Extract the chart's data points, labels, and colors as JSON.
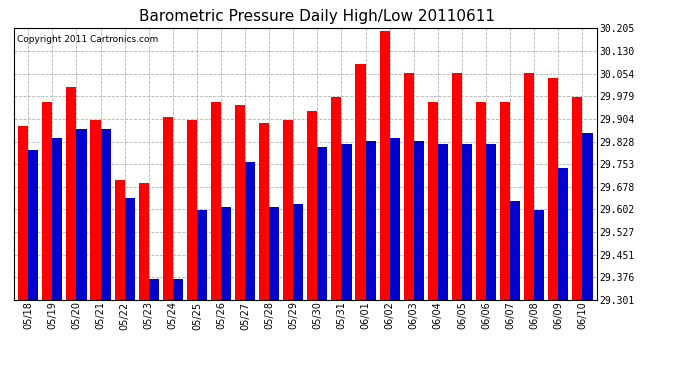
{
  "title": "Barometric Pressure Daily High/Low 20110611",
  "copyright": "Copyright 2011 Cartronics.com",
  "dates": [
    "05/18",
    "05/19",
    "05/20",
    "05/21",
    "05/22",
    "05/23",
    "05/24",
    "05/25",
    "05/26",
    "05/27",
    "05/28",
    "05/29",
    "05/30",
    "05/31",
    "06/01",
    "06/02",
    "06/03",
    "06/04",
    "06/05",
    "06/06",
    "06/07",
    "06/08",
    "06/09",
    "06/10"
  ],
  "highs": [
    29.88,
    29.96,
    30.01,
    29.9,
    29.7,
    29.69,
    29.91,
    29.9,
    29.96,
    29.95,
    29.89,
    29.9,
    29.93,
    29.975,
    30.085,
    30.195,
    30.055,
    29.96,
    30.055,
    29.96,
    29.96,
    30.055,
    30.04,
    29.975
  ],
  "lows": [
    29.8,
    29.84,
    29.87,
    29.87,
    29.64,
    29.37,
    29.37,
    29.6,
    29.61,
    29.76,
    29.61,
    29.62,
    29.81,
    29.82,
    29.83,
    29.84,
    29.83,
    29.82,
    29.82,
    29.82,
    29.63,
    29.6,
    29.74,
    29.855
  ],
  "ymin": 29.301,
  "ymax": 30.205,
  "yticks": [
    29.301,
    29.376,
    29.451,
    29.527,
    29.602,
    29.678,
    29.753,
    29.828,
    29.904,
    29.979,
    30.054,
    30.13,
    30.205
  ],
  "high_color": "#ff0000",
  "low_color": "#0000cc",
  "bg_color": "#ffffff",
  "grid_color": "#aaaaaa",
  "title_fontsize": 11,
  "tick_fontsize": 7,
  "copyright_fontsize": 6.5
}
